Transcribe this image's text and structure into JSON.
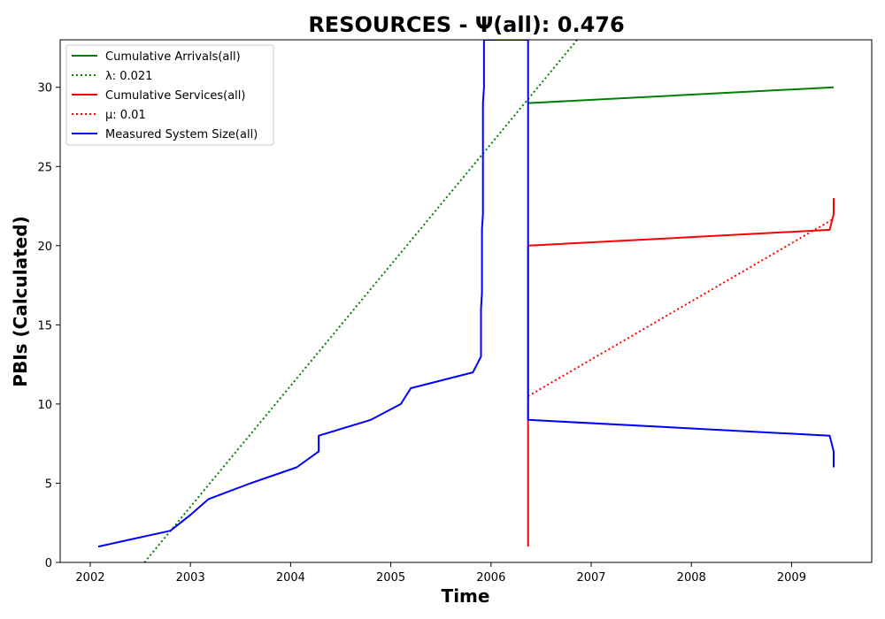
{
  "chart_data": {
    "type": "line",
    "title": "RESOURCES -  Ψ(all): 0.476",
    "xlabel": "Time",
    "ylabel": "PBIs (Calculated)",
    "xlim": [
      2001.7,
      2009.8
    ],
    "ylim": [
      0,
      33
    ],
    "xticks": [
      2002,
      2003,
      2004,
      2005,
      2006,
      2007,
      2008,
      2009
    ],
    "yticks": [
      0,
      5,
      10,
      15,
      20,
      25,
      30
    ],
    "grid": false,
    "legend_position": "top-left",
    "series": [
      {
        "name": "Cumulative Arrivals(all)",
        "color": "#008000",
        "style": "solid",
        "x": [
          2006.37,
          2009.42
        ],
        "y": [
          29,
          30
        ]
      },
      {
        "name": "λ: 0.021",
        "color": "#008000",
        "style": "dotted",
        "x": [
          2002.54,
          2006.86
        ],
        "y": [
          0,
          33
        ]
      },
      {
        "name": "Cumulative Services(all)",
        "color": "#ff0000",
        "style": "solid",
        "x": [
          2006.37,
          2006.37,
          2009.38,
          2009.42,
          2009.42
        ],
        "y": [
          1,
          20,
          21,
          22,
          23
        ]
      },
      {
        "name": "μ: 0.01",
        "color": "#ff0000",
        "style": "dotted",
        "x": [
          2006.37,
          2009.42
        ],
        "y": [
          10.5,
          21.7
        ]
      },
      {
        "name": "Measured System Size(all)",
        "color": "#0000ff",
        "style": "solid",
        "x": [
          2002.08,
          2002.8,
          2003.0,
          2003.18,
          2003.6,
          2004.06,
          2004.28,
          2004.28,
          2004.8,
          2005.1,
          2005.2,
          2005.82,
          2005.9,
          2005.9,
          2005.91,
          2005.91,
          2005.92,
          2005.92,
          2005.93,
          2005.93,
          2006.37,
          2006.37,
          2009.38,
          2009.42,
          2009.42
        ],
        "y": [
          1,
          2,
          3,
          4,
          5,
          6,
          7,
          8,
          9,
          10,
          11,
          12,
          13,
          16,
          17,
          21,
          22,
          29,
          30,
          33,
          33,
          9,
          8,
          7,
          6
        ]
      }
    ]
  }
}
